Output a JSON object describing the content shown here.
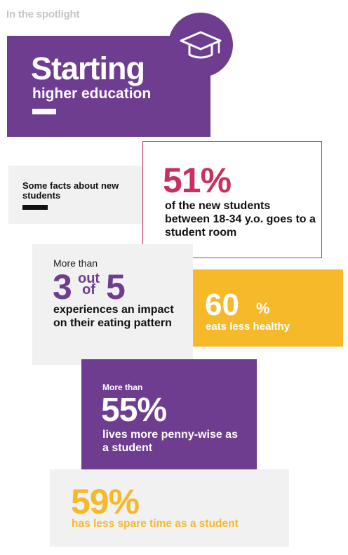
{
  "header": {
    "label": "In the spotlight"
  },
  "hero": {
    "title": "Starting",
    "subtitle": "higher education",
    "icon": "graduation-cap-icon"
  },
  "intro": {
    "text": "Some facts about new students"
  },
  "facts": [
    {
      "value": "51%",
      "text": "of the new students between 18-34 y.o. goes to a student room"
    },
    {
      "prefix": "More than",
      "left": "3",
      "out": "out",
      "of": "of",
      "right": "5",
      "text": "experiences an impact on their eating pattern"
    },
    {
      "value": "60",
      "unit": "%",
      "text": "eats less healthy"
    },
    {
      "prefix": "More than",
      "value": "55%",
      "text": "lives more penny-wise as a student"
    },
    {
      "value": "59%",
      "text": "has less spare time as a student"
    }
  ],
  "colors": {
    "purple": "#6e3d90",
    "magenta": "#c8305e",
    "yellow": "#f5b92a",
    "light_gray": "#f1f1f1"
  }
}
